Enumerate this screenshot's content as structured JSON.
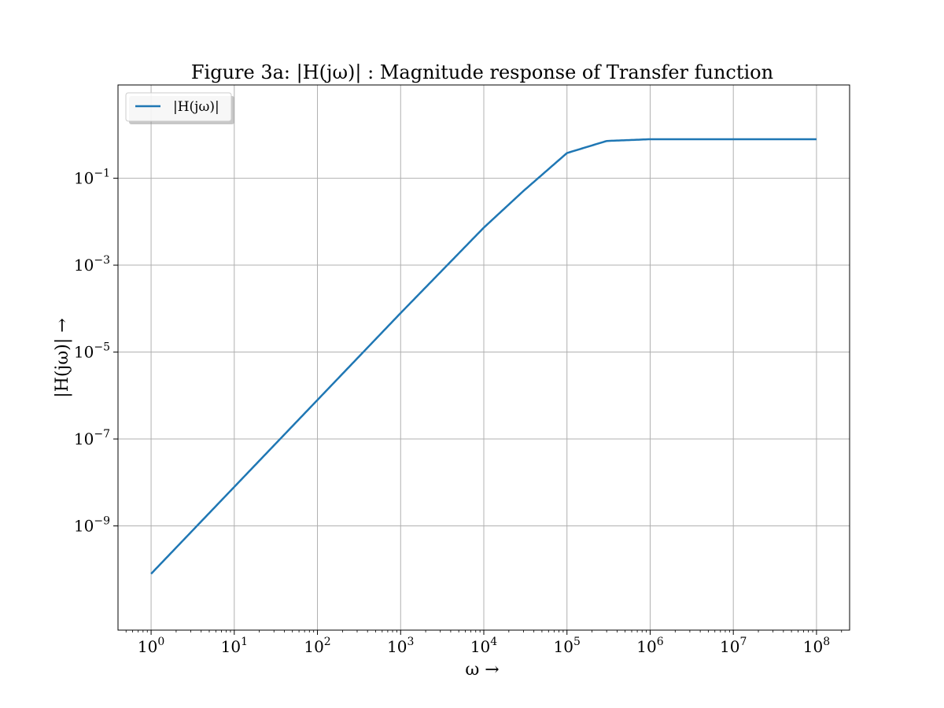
{
  "chart_data": {
    "type": "line",
    "title": "Figure 3a: |H(jω)| : Magnitude response of Transfer function",
    "xlabel": "ω →",
    "ylabel": "|H(jω)| →",
    "x_scale": "log",
    "y_scale": "log",
    "xlim": [
      0.4,
      250000000
    ],
    "ylim": [
      4e-12,
      14
    ],
    "x_ticks": [
      "10^0",
      "10^1",
      "10^2",
      "10^3",
      "10^4",
      "10^5",
      "10^6",
      "10^7",
      "10^8"
    ],
    "y_ticks": [
      "10^-1",
      "10^-3",
      "10^-5",
      "10^-7",
      "10^-9"
    ],
    "grid": true,
    "legend_position": "top-left",
    "series": [
      {
        "name": "|H(jω)|",
        "color": "#1f77b4",
        "x": [
          1,
          10,
          100,
          1000,
          10000,
          30000,
          100000,
          300000,
          1000000,
          10000000,
          100000000
        ],
        "y": [
          7.9e-11,
          7.9e-09,
          7.9e-07,
          7.9e-05,
          0.0073,
          0.051,
          0.38,
          0.72,
          0.79,
          0.79,
          0.79
        ]
      }
    ]
  }
}
